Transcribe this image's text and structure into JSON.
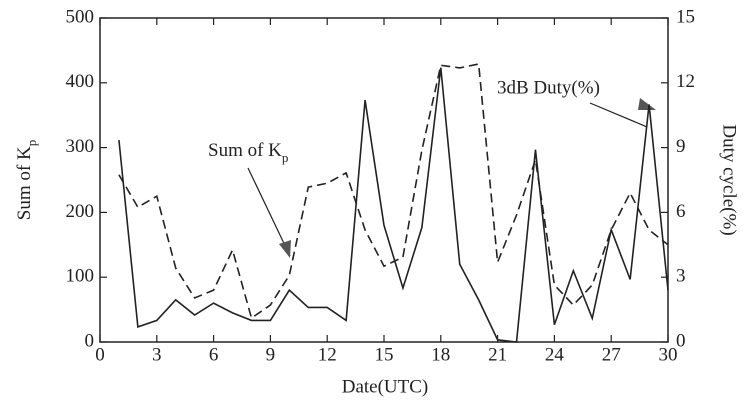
{
  "chart_data": {
    "type": "line",
    "xlabel": "Date(UTC)",
    "ylabel": {
      "text": "Sum of K",
      "subscript": "p"
    },
    "y2label": "Duty cycle(%)",
    "x": [
      1,
      2,
      3,
      4,
      5,
      6,
      7,
      8,
      9,
      10,
      11,
      12,
      13,
      14,
      15,
      16,
      17,
      18,
      19,
      20,
      21,
      22,
      23,
      24,
      25,
      26,
      27,
      28,
      29,
      30
    ],
    "series": [
      {
        "name": "Sum of Kp",
        "color": "#222222",
        "dash": true,
        "axis": "y",
        "values": [
          258,
          208,
          225,
          114,
          68,
          80,
          142,
          37,
          57,
          103,
          239,
          245,
          261,
          173,
          117,
          131,
          296,
          427,
          423,
          429,
          123,
          196,
          281,
          88,
          57,
          88,
          173,
          230,
          173,
          150
        ]
      },
      {
        "name": "3dB Duty(%)",
        "color": "#222222",
        "dash": false,
        "axis": "y2",
        "values": [
          9.35,
          0.7,
          1.0,
          1.95,
          1.25,
          1.8,
          1.35,
          1.0,
          1.0,
          2.4,
          1.6,
          1.6,
          1.0,
          11.2,
          5.4,
          2.5,
          5.3,
          12.7,
          3.6,
          1.95,
          0.1,
          0,
          8.9,
          0.8,
          3.3,
          1.1,
          5.2,
          2.9,
          11.0,
          2.4
        ]
      }
    ],
    "annotations": [
      {
        "text": "Sum of K",
        "subscript": "p"
      },
      {
        "text": "3dB Duty(%)"
      }
    ],
    "xlim": [
      0,
      30
    ],
    "xticks": [
      0,
      3,
      6,
      9,
      12,
      15,
      18,
      21,
      24,
      27,
      30
    ],
    "ylim": [
      0,
      500
    ],
    "yticks": [
      0,
      100,
      200,
      300,
      400,
      500
    ],
    "y2lim": [
      0,
      15
    ],
    "y2ticks": [
      0,
      3,
      6,
      9,
      12,
      15
    ]
  }
}
